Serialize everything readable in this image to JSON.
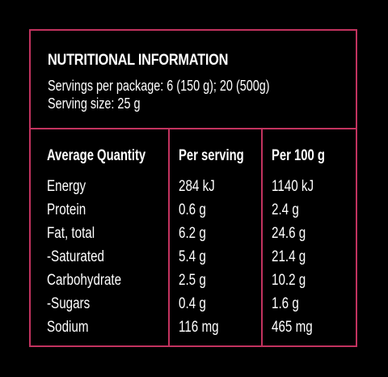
{
  "panel": {
    "title": "NUTRITIONAL INFORMATION",
    "servings_per_package": "Servings per package: 6 (150 g); 20 (500g)",
    "serving_size": "Serving size: 25 g",
    "border_color": "#c2335f",
    "background_color": "#000000",
    "text_color": "#ffffff"
  },
  "table": {
    "headers": [
      "Average Quantity",
      "Per serving",
      "Per 100 g"
    ],
    "rows": [
      [
        "Energy",
        "284 kJ",
        "1140 kJ"
      ],
      [
        "Protein",
        "0.6 g",
        "2.4 g"
      ],
      [
        "Fat, total",
        "6.2 g",
        "24.6 g"
      ],
      [
        "-Saturated",
        "5.4 g",
        "21.4 g"
      ],
      [
        "Carbohydrate",
        "2.5 g",
        "10.2 g"
      ],
      [
        "-Sugars",
        "0.4 g",
        "1.6 g"
      ],
      [
        "Sodium",
        "116 mg",
        "465 mg"
      ]
    ]
  }
}
